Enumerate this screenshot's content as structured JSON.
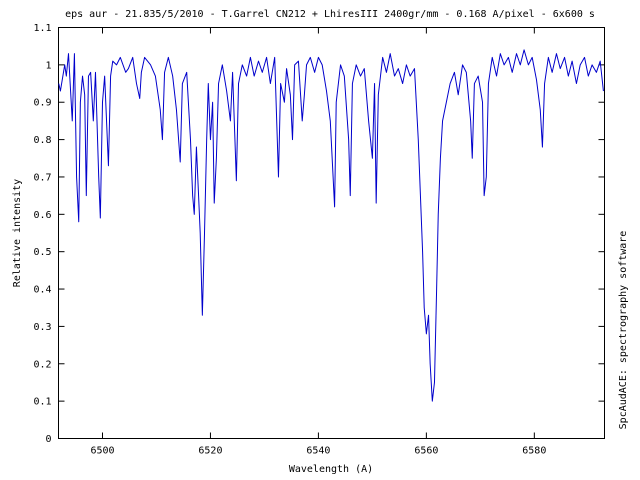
{
  "chart_data": {
    "type": "line",
    "title": "eps aur - 21.835/5/2010 - T.Garrel CN212 + LhiresIII 2400gr/mm - 0.168 A/pixel - 6x600 s",
    "x_label": "Wavelength (A)",
    "y_label": "Relative intensity",
    "side_note": "SpcAudACE: spectrography software",
    "color": "#0000cc",
    "xlim": [
      6491.85,
      6593
    ],
    "ylim": [
      0,
      1.1
    ],
    "xticks": [
      6500,
      6520,
      6540,
      6560,
      6580
    ],
    "yticks": [
      0,
      0.1,
      0.2,
      0.3,
      0.4,
      0.5,
      0.6,
      0.7,
      0.8,
      0.9,
      1,
      1.1
    ],
    "x": [
      6491.9,
      6492.2,
      6493.0,
      6493.3,
      6493.7,
      6494.4,
      6494.8,
      6495.2,
      6495.6,
      6495.9,
      6496.3,
      6496.7,
      6497.0,
      6497.4,
      6497.8,
      6498.3,
      6498.7,
      6499.3,
      6499.6,
      6500.0,
      6500.4,
      6501.1,
      6501.5,
      6501.9,
      6502.6,
      6503.3,
      6504.3,
      6504.8,
      6505.6,
      6506.3,
      6506.9,
      6507.2,
      6507.8,
      6508.9,
      6509.8,
      6510.7,
      6511.1,
      6511.5,
      6512.2,
      6513.0,
      6513.7,
      6514.4,
      6514.8,
      6515.6,
      6516.3,
      6516.7,
      6517.0,
      6517.4,
      6517.8,
      6518.1,
      6518.5,
      6518.9,
      6519.3,
      6519.6,
      6520.0,
      6520.4,
      6520.7,
      6521.1,
      6521.5,
      6522.2,
      6523.0,
      6523.7,
      6524.1,
      6524.8,
      6525.2,
      6525.9,
      6526.7,
      6527.4,
      6528.1,
      6528.9,
      6529.6,
      6530.4,
      6531.1,
      6531.9,
      6532.6,
      6533.0,
      6533.7,
      6534.1,
      6534.8,
      6535.2,
      6535.6,
      6536.3,
      6537.0,
      6537.4,
      6537.8,
      6538.5,
      6539.3,
      6540.0,
      6540.7,
      6541.5,
      6542.2,
      6543.0,
      6543.3,
      6544.1,
      6544.8,
      6545.6,
      6545.9,
      6546.3,
      6547.0,
      6547.8,
      6548.5,
      6549.3,
      6550.0,
      6550.4,
      6550.7,
      6551.1,
      6551.9,
      6552.6,
      6553.3,
      6554.1,
      6554.8,
      6555.6,
      6556.3,
      6557.0,
      6557.8,
      6558.5,
      6558.9,
      6559.3,
      6559.6,
      6560.0,
      6560.4,
      6560.7,
      6561.1,
      6561.5,
      6561.9,
      6562.2,
      6562.6,
      6563.0,
      6563.7,
      6564.4,
      6565.2,
      6565.9,
      6566.7,
      6567.4,
      6568.2,
      6568.5,
      6568.9,
      6569.6,
      6570.4,
      6570.7,
      6571.1,
      6571.5,
      6572.2,
      6573.0,
      6573.7,
      6574.4,
      6575.2,
      6575.9,
      6576.7,
      6577.4,
      6578.1,
      6578.9,
      6579.6,
      6580.4,
      6581.1,
      6581.5,
      6581.9,
      6582.6,
      6583.3,
      6584.1,
      6584.8,
      6585.6,
      6586.3,
      6587.0,
      6587.8,
      6588.5,
      6589.3,
      6590.0,
      6590.7,
      6591.5,
      6592.2,
      6592.8
    ],
    "values": [
      0.95,
      0.93,
      1.0,
      0.97,
      1.03,
      0.85,
      1.03,
      0.7,
      0.58,
      0.9,
      0.97,
      0.92,
      0.65,
      0.97,
      0.98,
      0.85,
      0.98,
      0.7,
      0.59,
      0.9,
      0.97,
      0.73,
      0.97,
      1.01,
      1.0,
      1.02,
      0.98,
      0.99,
      1.02,
      0.95,
      0.91,
      0.98,
      1.02,
      1.0,
      0.97,
      0.88,
      0.8,
      0.98,
      1.02,
      0.97,
      0.88,
      0.74,
      0.95,
      0.98,
      0.8,
      0.65,
      0.6,
      0.78,
      0.65,
      0.55,
      0.33,
      0.55,
      0.8,
      0.95,
      0.8,
      0.9,
      0.63,
      0.75,
      0.95,
      1.0,
      0.93,
      0.85,
      0.98,
      0.69,
      0.95,
      1.0,
      0.97,
      1.02,
      0.97,
      1.01,
      0.98,
      1.02,
      0.95,
      1.02,
      0.7,
      0.95,
      0.9,
      0.99,
      0.92,
      0.8,
      1.0,
      1.01,
      0.85,
      0.92,
      1.0,
      1.02,
      0.98,
      1.02,
      1.0,
      0.93,
      0.85,
      0.62,
      0.9,
      1.0,
      0.97,
      0.8,
      0.65,
      0.95,
      1.0,
      0.97,
      0.99,
      0.85,
      0.75,
      0.95,
      0.63,
      0.92,
      1.02,
      0.98,
      1.03,
      0.97,
      0.99,
      0.95,
      1.0,
      0.97,
      0.99,
      0.8,
      0.65,
      0.5,
      0.35,
      0.28,
      0.33,
      0.2,
      0.1,
      0.15,
      0.4,
      0.6,
      0.75,
      0.85,
      0.9,
      0.95,
      0.98,
      0.92,
      1.0,
      0.98,
      0.85,
      0.75,
      0.95,
      0.97,
      0.9,
      0.65,
      0.7,
      0.95,
      1.02,
      0.97,
      1.03,
      1.0,
      1.02,
      0.98,
      1.03,
      1.0,
      1.04,
      1.0,
      1.02,
      0.96,
      0.88,
      0.78,
      0.95,
      1.02,
      0.98,
      1.03,
      0.99,
      1.02,
      0.97,
      1.01,
      0.95,
      1.0,
      1.02,
      0.97,
      1.0,
      0.98,
      1.01,
      0.93
    ]
  }
}
